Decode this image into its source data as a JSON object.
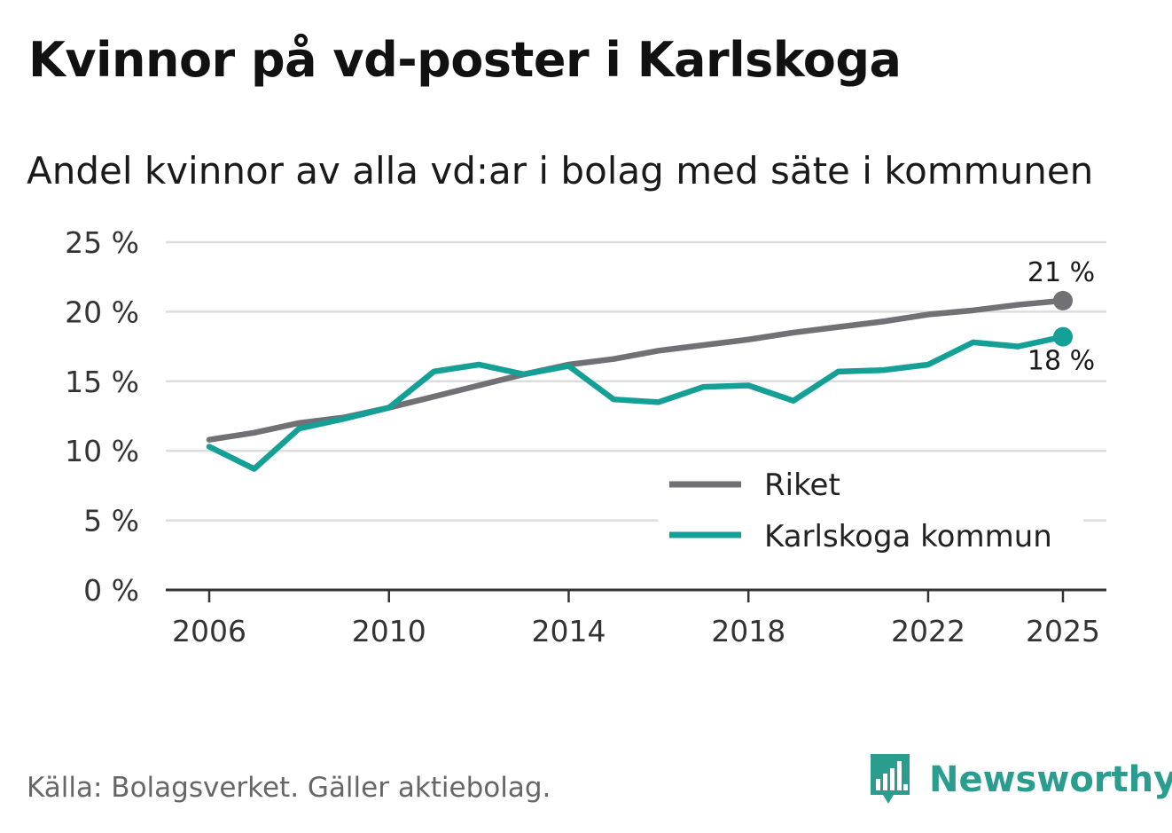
{
  "title": "Kvinnor på vd-poster i Karlskoga",
  "subtitle": "Andel kvinnor av alla vd:ar i bolag med säte i kommunen",
  "source": "Källa: Bolagsverket. Gäller aktiebolag.",
  "brand": {
    "name": "Newsworthy"
  },
  "colors": {
    "riket": "#707075",
    "karlskoga": "#14a096",
    "grid": "#dddddd",
    "axis": "#333333"
  },
  "chart_data": {
    "type": "line",
    "ylim": [
      0,
      25
    ],
    "xlim": [
      2006,
      2025
    ],
    "y_ticks": [
      0,
      5,
      10,
      15,
      20,
      25
    ],
    "y_tick_labels": [
      "0 %",
      "5 %",
      "10 %",
      "15 %",
      "20 %",
      "25 %"
    ],
    "x_ticks": [
      2006,
      2010,
      2014,
      2018,
      2022,
      2025
    ],
    "x_tick_labels": [
      "2006",
      "2010",
      "2014",
      "2018",
      "2022",
      "2025"
    ],
    "legend_position": "bottom-right",
    "series": [
      {
        "key": "riket",
        "name": "Riket",
        "x": [
          2006,
          2007,
          2008,
          2009,
          2010,
          2011,
          2012,
          2013,
          2014,
          2015,
          2016,
          2017,
          2018,
          2019,
          2020,
          2021,
          2022,
          2023,
          2024,
          2025
        ],
        "values": [
          10.8,
          11.3,
          12.0,
          12.4,
          13.1,
          13.9,
          14.7,
          15.5,
          16.2,
          16.6,
          17.2,
          17.6,
          18.0,
          18.5,
          18.9,
          19.3,
          19.8,
          20.1,
          20.5,
          20.8
        ],
        "end_label": "21 %"
      },
      {
        "key": "karlskoga",
        "name": "Karlskoga kommun",
        "x": [
          2006,
          2007,
          2008,
          2009,
          2010,
          2011,
          2012,
          2013,
          2014,
          2015,
          2016,
          2017,
          2018,
          2019,
          2020,
          2021,
          2022,
          2023,
          2024,
          2025
        ],
        "values": [
          10.3,
          8.7,
          11.6,
          12.3,
          13.1,
          15.7,
          16.2,
          15.5,
          16.1,
          13.7,
          13.5,
          14.6,
          14.7,
          13.6,
          15.7,
          15.8,
          16.2,
          17.8,
          17.5,
          18.2
        ],
        "end_label": "18 %"
      }
    ]
  }
}
